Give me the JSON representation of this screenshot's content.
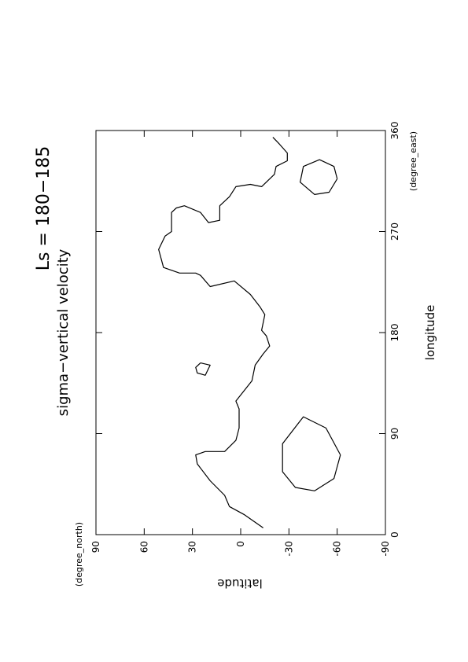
{
  "chart_data": {
    "type": "contour",
    "title": "Ls = 180−185",
    "subtitle": "sigma−vertical velocity",
    "x_label": "longitude",
    "x_unit": "(degree_east)",
    "y_label": "latitude",
    "y_unit": "(degree_north)",
    "xlim": [
      0,
      360
    ],
    "xticks": [
      0,
      90,
      180,
      270,
      360
    ],
    "ylim": [
      -90,
      90
    ],
    "yticks": [
      90,
      60,
      30,
      0,
      -30,
      -60,
      -90
    ],
    "color": "#000000",
    "contours": [
      {
        "x": [
          6,
          18,
          25,
          35,
          48,
          63,
          71,
          74,
          74,
          84,
          95,
          112,
          119,
          128,
          137,
          151,
          161,
          168,
          177,
          182,
          196,
          203,
          214,
          226,
          221,
          231,
          233,
          233,
          238,
          254,
          266,
          270,
          287,
          291,
          293,
          287,
          278,
          280,
          293,
          301,
          310,
          312,
          310,
          321,
          328,
          333,
          340,
          348,
          354
        ],
        "y": [
          -14,
          -2,
          7,
          10,
          19,
          27,
          28,
          22,
          10,
          3,
          1,
          1,
          3,
          -2,
          -7,
          -9,
          -14,
          -18,
          -16,
          -13,
          -15,
          -12,
          -6,
          4,
          19,
          25,
          28,
          38,
          48,
          51,
          47,
          43,
          43,
          40,
          35,
          25,
          20,
          13,
          13,
          7,
          3,
          -6,
          -13,
          -21,
          -22,
          -29,
          -29,
          -24,
          -20
        ]
      },
      {
        "x": [
          153,
          151,
          142,
          144,
          149,
          153
        ],
        "y": [
          25,
          19,
          22,
          27,
          28,
          25
        ]
      },
      {
        "x": [
          71,
          50,
          39,
          42,
          56,
          81,
          105,
          95,
          71
        ],
        "y": [
          -62,
          -58,
          -46,
          -34,
          -26,
          -26,
          -39,
          -53,
          -62
        ]
      },
      {
        "x": [
          317,
          305,
          303,
          314,
          328,
          334,
          328,
          317
        ],
        "y": [
          -60,
          -55,
          -46,
          -37,
          -39,
          -49,
          -58,
          -60
        ]
      }
    ]
  }
}
